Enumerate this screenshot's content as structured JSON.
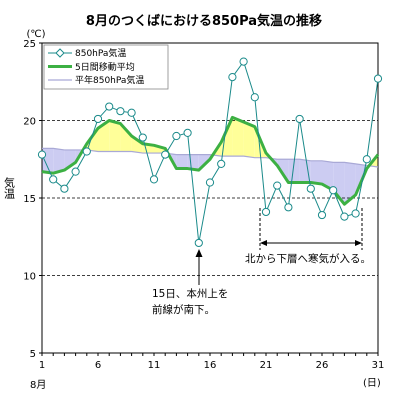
{
  "chart_data": {
    "type": "line",
    "title": "8月のつくばにおける850Pa気温の推移",
    "ylabel": "気温",
    "yunit": "(℃)",
    "xunit": "(日)",
    "month_label": "8月",
    "xlim": [
      1,
      31
    ],
    "ylim": [
      5,
      25
    ],
    "yticks": [
      5,
      10,
      15,
      20,
      25
    ],
    "xticks": [
      1,
      6,
      11,
      16,
      21,
      26,
      31
    ],
    "grid_y": [
      10,
      15,
      20
    ],
    "legend_position": "top-left",
    "colors": {
      "observed": "#1a8a8a",
      "marker_fill": "#ffffff",
      "moving_avg": "#3cb043",
      "normal": "#a9a9d6",
      "warm_fill": "#ffff99",
      "cold_fill": "#ccccf2"
    },
    "series": [
      {
        "name": "850hPa気温",
        "x": [
          1,
          2,
          3,
          4,
          5,
          6,
          7,
          8,
          9,
          10,
          11,
          12,
          13,
          14,
          15,
          16,
          17,
          18,
          19,
          20,
          21,
          22,
          23,
          24,
          25,
          26,
          27,
          28,
          29,
          30,
          31
        ],
        "values": [
          17.8,
          16.2,
          15.6,
          16.7,
          18.0,
          20.1,
          20.9,
          20.6,
          20.5,
          18.9,
          16.2,
          17.8,
          19.0,
          19.2,
          12.1,
          16.0,
          17.2,
          22.8,
          23.8,
          21.5,
          14.1,
          15.8,
          14.4,
          20.1,
          15.6,
          13.9,
          15.5,
          13.8,
          14.0,
          17.5,
          22.7
        ]
      },
      {
        "name": "5日間移動平均",
        "x": [
          1,
          2,
          3,
          4,
          5,
          6,
          7,
          8,
          9,
          10,
          11,
          12,
          13,
          14,
          15,
          16,
          17,
          18,
          19,
          20,
          21,
          22,
          23,
          24,
          25,
          26,
          27,
          28,
          29,
          30,
          31
        ],
        "values": [
          16.7,
          16.6,
          16.8,
          17.3,
          18.5,
          19.5,
          20.0,
          19.8,
          19.0,
          18.5,
          18.4,
          18.2,
          16.9,
          16.9,
          16.8,
          17.5,
          18.6,
          20.2,
          19.9,
          19.6,
          17.9,
          17.1,
          16.0,
          16.0,
          16.0,
          15.9,
          15.5,
          14.6,
          15.2,
          16.9,
          17.8
        ]
      },
      {
        "name": "平年850hPa気温",
        "x": [
          1,
          2,
          3,
          4,
          5,
          6,
          7,
          8,
          9,
          10,
          11,
          12,
          13,
          14,
          15,
          16,
          17,
          18,
          19,
          20,
          21,
          22,
          23,
          24,
          25,
          26,
          27,
          28,
          29,
          30,
          31
        ],
        "values": [
          18.2,
          18.2,
          18.1,
          18.1,
          18.1,
          18.0,
          18.0,
          18.0,
          18.0,
          17.9,
          17.9,
          17.9,
          17.8,
          17.8,
          17.8,
          17.8,
          17.7,
          17.7,
          17.7,
          17.6,
          17.6,
          17.5,
          17.5,
          17.5,
          17.4,
          17.4,
          17.3,
          17.3,
          17.2,
          17.1,
          17.0
        ]
      }
    ],
    "annotations": [
      {
        "text_lines": [
          "15日、本州上を",
          "前線が南下。"
        ],
        "arrow_to_x": 15
      },
      {
        "text": "北から下層へ寒気が入る。",
        "x_range": [
          21,
          30
        ]
      }
    ]
  }
}
